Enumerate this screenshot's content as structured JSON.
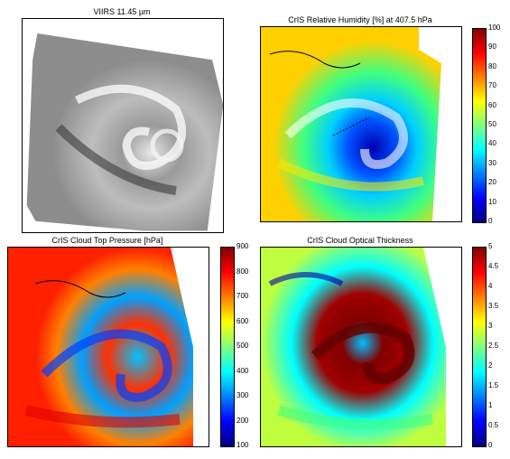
{
  "panels": {
    "p1": {
      "title": "VIIRS 11.45 µm"
    },
    "p2": {
      "title": "CrIS Relative Humidity [%] at 407.5 hPa",
      "ticks": [
        "100",
        "90",
        "80",
        "70",
        "60",
        "50",
        "40",
        "30",
        "20",
        "10",
        "0"
      ]
    },
    "p3": {
      "title": "CrIS Cloud Top Pressure [hPa]",
      "ticks": [
        "900",
        "800",
        "700",
        "600",
        "500",
        "400",
        "300",
        "200",
        "100"
      ]
    },
    "p4": {
      "title": "CrIS Cloud Optical Thickness",
      "ticks": [
        "5",
        "4.5",
        "4",
        "3.5",
        "3",
        "2.5",
        "2",
        "1.5",
        "1",
        "0.5",
        "0"
      ]
    }
  },
  "colormap": "jet"
}
